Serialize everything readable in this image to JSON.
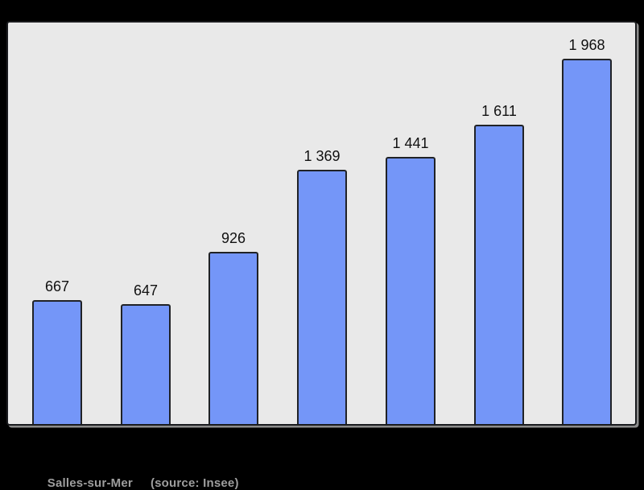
{
  "figure": {
    "caption": {
      "title": "Salles-sur-Mer",
      "source": "(source: Insee)"
    }
  },
  "chart_data": {
    "type": "bar",
    "title": "",
    "xlabel": "",
    "ylabel": "",
    "values": [
      667,
      647,
      926,
      1369,
      1441,
      1611,
      1968
    ],
    "value_labels": [
      "667",
      "647",
      "926",
      "1 369",
      "1 441",
      "1 611",
      "1 968"
    ],
    "baseline": 0,
    "axes_visible": false,
    "grid": "off",
    "legend": "none"
  },
  "colors": {
    "canvas_background": "#000000",
    "plot_background": "#e9e9e9",
    "plot_border": "#1a1b1e",
    "bar_fill": "#7496f8",
    "bar_border": "#202226",
    "value_label": "#111111",
    "caption_text": "#9e9e9e"
  }
}
